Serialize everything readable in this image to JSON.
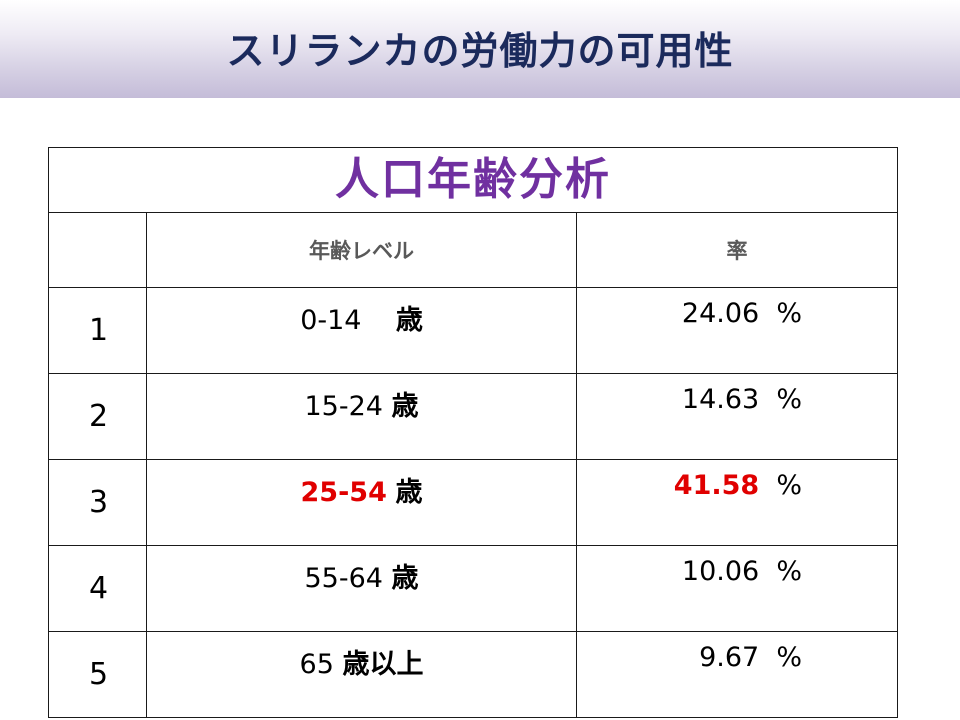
{
  "slide": {
    "title": "スリランカの労働力の可用性"
  },
  "table": {
    "caption": "人口年齢分析",
    "headers": {
      "index": "",
      "age_level": "年齢レベル",
      "rate": "率"
    },
    "rows": [
      {
        "index": "1",
        "age_range": "0-14   ",
        "age_unit": "歳",
        "rate_value": "24.06",
        "rate_unit": "%",
        "highlight": false
      },
      {
        "index": "2",
        "age_range": "15-24",
        "age_unit": "歳",
        "rate_value": "14.63",
        "rate_unit": "%",
        "highlight": false
      },
      {
        "index": "3",
        "age_range": "25-54",
        "age_unit": "歳",
        "rate_value": "41.58",
        "rate_unit": "%",
        "highlight": true
      },
      {
        "index": "4",
        "age_range": "55-64",
        "age_unit": "歳",
        "rate_value": "10.06",
        "rate_unit": "%",
        "highlight": false
      },
      {
        "index": "5",
        "age_range": "65",
        "age_unit": "歳以上",
        "rate_value": "9.67",
        "rate_unit": "%",
        "highlight": false
      }
    ],
    "colors": {
      "caption": "#7030a0",
      "highlight": "#e00000",
      "header_text": "#595959",
      "title_text": "#1b2a5c"
    }
  }
}
